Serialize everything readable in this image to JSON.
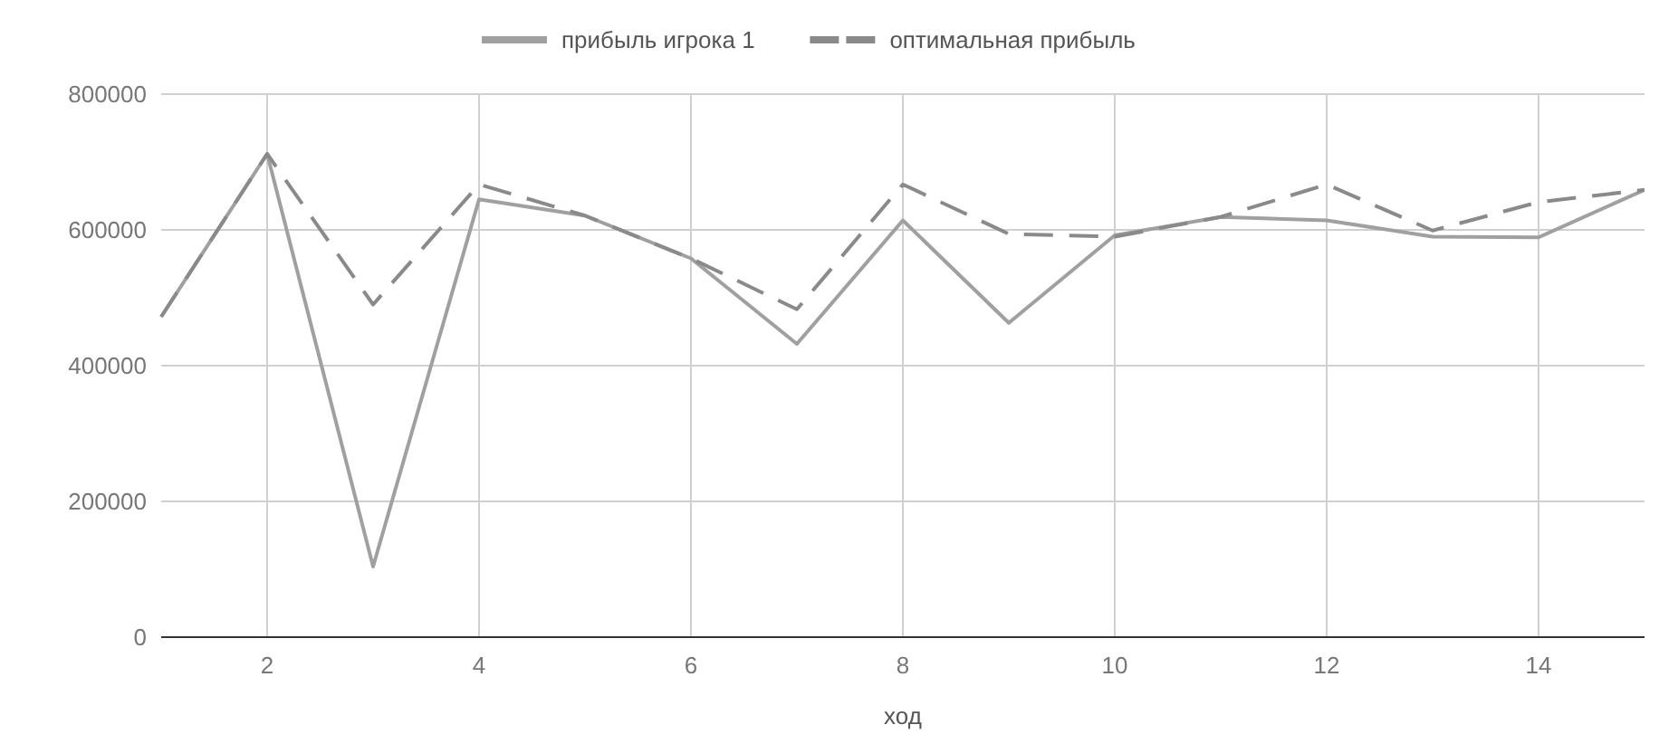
{
  "chart_data": {
    "type": "line",
    "xlabel": "ход",
    "x": [
      1,
      2,
      3,
      4,
      5,
      6,
      7,
      8,
      9,
      10,
      11,
      12,
      13,
      14,
      15
    ],
    "series": [
      {
        "name": "прибыль игрока 1",
        "color": "#a0a0a0",
        "line_style": "solid",
        "values": [
          472000,
          712000,
          104000,
          645000,
          621000,
          558000,
          432000,
          614000,
          463000,
          592000,
          619000,
          614000,
          590000,
          589000,
          659000
        ]
      },
      {
        "name": "оптимальная прибыль",
        "color": "#8a8a8a",
        "line_style": "dashed",
        "values": [
          472000,
          712000,
          490000,
          667000,
          621000,
          558000,
          483000,
          667000,
          594000,
          590000,
          619000,
          667000,
          599000,
          641000,
          659000
        ]
      }
    ],
    "xlim": [
      1,
      15
    ],
    "xticks": [
      2,
      4,
      6,
      8,
      10,
      12,
      14
    ],
    "ylim": [
      0,
      800000
    ],
    "yticks": [
      0,
      200000,
      400000,
      600000,
      800000
    ],
    "grid": true,
    "legend": "top"
  }
}
